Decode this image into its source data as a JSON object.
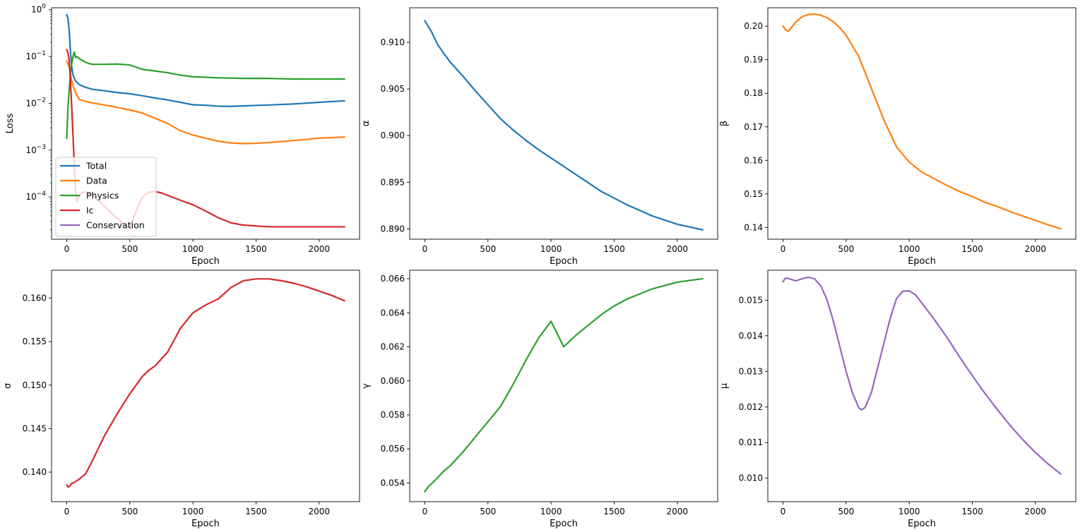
{
  "chart_data": [
    {
      "type": "line",
      "yscale": "log",
      "xlabel": "Epoch",
      "ylabel": "Loss",
      "xlim": [
        -120,
        2320
      ],
      "ylim": [
        1.25e-05,
        1.1
      ],
      "xticks": [
        0,
        500,
        1000,
        1500,
        2000
      ],
      "xtick_labels": [
        "0",
        "500",
        "1000",
        "1500",
        "2000"
      ],
      "yticks": [
        0.0001,
        0.001,
        0.01,
        0.1,
        1
      ],
      "ytick_labels": [
        {
          "base": "10",
          "exp": "−4"
        },
        {
          "base": "10",
          "exp": "−3"
        },
        {
          "base": "10",
          "exp": "−2"
        },
        {
          "base": "10",
          "exp": "−1"
        },
        {
          "base": "10",
          "exp": "0"
        }
      ],
      "legend_position": "lower-left",
      "series": [
        {
          "name": "Total",
          "color": "#1f77b4",
          "x": [
            0,
            10,
            20,
            30,
            40,
            50,
            70,
            100,
            150,
            200,
            300,
            400,
            500,
            600,
            700,
            800,
            900,
            1000,
            1100,
            1200,
            1300,
            1400,
            1500,
            1600,
            1800,
            2000,
            2200
          ],
          "y": [
            0.78,
            0.65,
            0.35,
            0.12,
            0.06,
            0.04,
            0.03,
            0.025,
            0.022,
            0.02,
            0.0185,
            0.017,
            0.016,
            0.0145,
            0.013,
            0.0118,
            0.0105,
            0.0093,
            0.0091,
            0.0087,
            0.0086,
            0.0088,
            0.009,
            0.0092,
            0.0097,
            0.0105,
            0.0113
          ]
        },
        {
          "name": "Data",
          "color": "#ff7f0e",
          "x": [
            0,
            20,
            40,
            60,
            80,
            100,
            150,
            200,
            300,
            400,
            500,
            600,
            700,
            800,
            900,
            1000,
            1100,
            1200,
            1300,
            1400,
            1500,
            1600,
            1800,
            2000,
            2200
          ],
          "y": [
            0.08,
            0.06,
            0.03,
            0.02,
            0.015,
            0.012,
            0.011,
            0.0102,
            0.0092,
            0.0082,
            0.0072,
            0.0062,
            0.0048,
            0.0037,
            0.0026,
            0.0021,
            0.0018,
            0.00155,
            0.00142,
            0.00138,
            0.0014,
            0.00145,
            0.0016,
            0.0018,
            0.0019
          ]
        },
        {
          "name": "Physics",
          "color": "#2ca02c",
          "x": [
            0,
            10,
            20,
            30,
            40,
            50,
            60,
            70,
            80,
            100,
            150,
            200,
            300,
            400,
            500,
            600,
            700,
            800,
            900,
            1000,
            1200,
            1400,
            1600,
            1800,
            2000,
            2200
          ],
          "y": [
            0.0018,
            0.008,
            0.02,
            0.045,
            0.07,
            0.1,
            0.125,
            0.095,
            0.1,
            0.09,
            0.075,
            0.068,
            0.068,
            0.069,
            0.066,
            0.053,
            0.049,
            0.045,
            0.04,
            0.037,
            0.035,
            0.034,
            0.034,
            0.033,
            0.033,
            0.033
          ]
        },
        {
          "name": "Ic",
          "color": "#d62728",
          "x": [
            0,
            10,
            20,
            30,
            40,
            50,
            60,
            70,
            80,
            90,
            100,
            120,
            150,
            180,
            220,
            260,
            300,
            350,
            400,
            450,
            500,
            550,
            600,
            650,
            700,
            750,
            800,
            900,
            1000,
            1100,
            1200,
            1300,
            1400,
            1600,
            1800,
            2000,
            2200
          ],
          "y": [
            0.14,
            0.12,
            0.08,
            0.03,
            0.008,
            0.002,
            0.0005,
            0.00015,
            8e-05,
            9e-05,
            0.0001,
            0.000125,
            0.000128,
            0.00012,
            0.0001,
            8e-05,
            6.2e-05,
            4.6e-05,
            3.5e-05,
            2.7e-05,
            2.2e-05,
            5e-05,
            0.0001,
            0.000126,
            0.00013,
            0.000122,
            0.000108,
            8.5e-05,
            6.8e-05,
            5e-05,
            3.6e-05,
            2.8e-05,
            2.5e-05,
            2.3e-05,
            2.3e-05,
            2.3e-05,
            2.3e-05
          ]
        },
        {
          "name": "Conservation",
          "color": "#9467bd",
          "x": [],
          "y": []
        }
      ]
    },
    {
      "type": "line",
      "xlabel": "Epoch",
      "ylabel": "α",
      "xlim": [
        -120,
        2320
      ],
      "ylim": [
        0.8889,
        0.9137
      ],
      "xticks": [
        0,
        500,
        1000,
        1500,
        2000
      ],
      "xtick_labels": [
        "0",
        "500",
        "1000",
        "1500",
        "2000"
      ],
      "yticks": [
        0.89,
        0.895,
        0.9,
        0.905,
        0.91
      ],
      "ytick_labels": [
        "0.890",
        "0.895",
        "0.900",
        "0.905",
        "0.910"
      ],
      "series": [
        {
          "name": "α",
          "color": "#1f77b4",
          "x": [
            0,
            50,
            100,
            150,
            200,
            300,
            400,
            500,
            600,
            700,
            800,
            900,
            1000,
            1200,
            1400,
            1600,
            1800,
            2000,
            2200
          ],
          "y": [
            0.9123,
            0.9112,
            0.9098,
            0.9088,
            0.9079,
            0.9064,
            0.9048,
            0.9033,
            0.9018,
            0.9006,
            0.8995,
            0.8985,
            0.8976,
            0.8958,
            0.894,
            0.8926,
            0.8914,
            0.8905,
            0.8899
          ]
        }
      ]
    },
    {
      "type": "line",
      "xlabel": "Epoch",
      "ylabel": "β",
      "xlim": [
        -120,
        2320
      ],
      "ylim": [
        0.1365,
        0.2055
      ],
      "xticks": [
        0,
        500,
        1000,
        1500,
        2000
      ],
      "xtick_labels": [
        "0",
        "500",
        "1000",
        "1500",
        "2000"
      ],
      "yticks": [
        0.14,
        0.15,
        0.16,
        0.17,
        0.18,
        0.19,
        0.2
      ],
      "ytick_labels": [
        "0.14",
        "0.15",
        "0.16",
        "0.17",
        "0.18",
        "0.19",
        "0.20"
      ],
      "series": [
        {
          "name": "β",
          "color": "#ff7f0e",
          "x": [
            0,
            20,
            40,
            60,
            100,
            150,
            200,
            250,
            300,
            350,
            400,
            450,
            500,
            600,
            700,
            800,
            900,
            1000,
            1100,
            1200,
            1300,
            1400,
            1500,
            1600,
            1700,
            1800,
            1900,
            2000,
            2100,
            2200
          ],
          "y": [
            0.2,
            0.199,
            0.1985,
            0.1993,
            0.2012,
            0.2028,
            0.2035,
            0.2036,
            0.2033,
            0.2025,
            0.2013,
            0.1996,
            0.1973,
            0.191,
            0.1815,
            0.172,
            0.164,
            0.1595,
            0.1565,
            0.1545,
            0.1525,
            0.1507,
            0.1492,
            0.1475,
            0.1462,
            0.1447,
            0.1434,
            0.1421,
            0.1408,
            0.1396
          ]
        }
      ]
    },
    {
      "type": "line",
      "xlabel": "Epoch",
      "ylabel": "σ",
      "xlim": [
        -120,
        2320
      ],
      "ylim": [
        0.1366,
        0.1632
      ],
      "xticks": [
        0,
        500,
        1000,
        1500,
        2000
      ],
      "xtick_labels": [
        "0",
        "500",
        "1000",
        "1500",
        "2000"
      ],
      "yticks": [
        0.14,
        0.145,
        0.15,
        0.155,
        0.16
      ],
      "ytick_labels": [
        "0.140",
        "0.145",
        "0.150",
        "0.155",
        "0.160"
      ],
      "series": [
        {
          "name": "σ",
          "color": "#d62728",
          "x": [
            0,
            10,
            20,
            40,
            60,
            100,
            150,
            200,
            300,
            400,
            500,
            600,
            650,
            700,
            800,
            900,
            1000,
            1100,
            1200,
            1300,
            1400,
            1500,
            1600,
            1700,
            1800,
            1900,
            2000,
            2100,
            2200
          ],
          "y": [
            0.1385,
            0.1383,
            0.1383,
            0.1387,
            0.1388,
            0.1392,
            0.1398,
            0.1412,
            0.1442,
            0.1467,
            0.149,
            0.151,
            0.1517,
            0.1522,
            0.1538,
            0.1565,
            0.1583,
            0.1592,
            0.1599,
            0.1612,
            0.162,
            0.1622,
            0.1622,
            0.162,
            0.1617,
            0.1613,
            0.1608,
            0.1603,
            0.1597
          ]
        }
      ]
    },
    {
      "type": "line",
      "xlabel": "Epoch",
      "ylabel": "γ",
      "xlim": [
        -120,
        2320
      ],
      "ylim": [
        0.0529,
        0.0665
      ],
      "xticks": [
        0,
        500,
        1000,
        1500,
        2000
      ],
      "xtick_labels": [
        "0",
        "500",
        "1000",
        "1500",
        "2000"
      ],
      "yticks": [
        0.054,
        0.056,
        0.058,
        0.06,
        0.062,
        0.064,
        0.066
      ],
      "ytick_labels": [
        "0.054",
        "0.056",
        "0.058",
        "0.060",
        "0.062",
        "0.064",
        "0.066"
      ],
      "series": [
        {
          "name": "γ",
          "color": "#2ca02c",
          "x": [
            0,
            30,
            60,
            100,
            150,
            200,
            300,
            400,
            500,
            600,
            700,
            800,
            900,
            1000,
            1100,
            1200,
            1300,
            1400,
            1500,
            1600,
            1700,
            1800,
            1900,
            2000,
            2100,
            2200
          ],
          "y": [
            0.0535,
            0.0538,
            0.054,
            0.0543,
            0.0547,
            0.055,
            0.0558,
            0.0567,
            0.0576,
            0.0585,
            0.0598,
            0.0612,
            0.0625,
            0.0635,
            0.062,
            0.0627,
            0.0633,
            0.0639,
            0.0644,
            0.0648,
            0.0651,
            0.0654,
            0.0656,
            0.0658,
            0.0659,
            0.066
          ]
        }
      ]
    },
    {
      "type": "line",
      "xlabel": "Epoch",
      "ylabel": "μ",
      "xlim": [
        -120,
        2320
      ],
      "ylim": [
        0.00934,
        0.01584
      ],
      "xticks": [
        0,
        500,
        1000,
        1500,
        2000
      ],
      "xtick_labels": [
        "0",
        "500",
        "1000",
        "1500",
        "2000"
      ],
      "yticks": [
        0.01,
        0.011,
        0.012,
        0.013,
        0.014,
        0.015
      ],
      "ytick_labels": [
        "0.010",
        "0.011",
        "0.012",
        "0.013",
        "0.014",
        "0.015"
      ],
      "series": [
        {
          "name": "μ",
          "color": "#9467bd",
          "x": [
            0,
            20,
            50,
            100,
            150,
            200,
            250,
            300,
            350,
            400,
            450,
            500,
            550,
            600,
            620,
            650,
            700,
            750,
            800,
            850,
            900,
            950,
            1000,
            1050,
            1100,
            1200,
            1300,
            1400,
            1500,
            1600,
            1700,
            1800,
            1900,
            2000,
            2100,
            2200
          ],
          "y": [
            0.01552,
            0.01562,
            0.0156,
            0.01554,
            0.0156,
            0.01564,
            0.0156,
            0.0154,
            0.015,
            0.0144,
            0.0137,
            0.013,
            0.0124,
            0.01198,
            0.01192,
            0.01198,
            0.0124,
            0.0131,
            0.0138,
            0.0145,
            0.01505,
            0.01525,
            0.01526,
            0.01515,
            0.01492,
            0.01445,
            0.01395,
            0.0134,
            0.01288,
            0.01238,
            0.01192,
            0.01148,
            0.01108,
            0.01072,
            0.0104,
            0.01012
          ]
        }
      ]
    }
  ]
}
